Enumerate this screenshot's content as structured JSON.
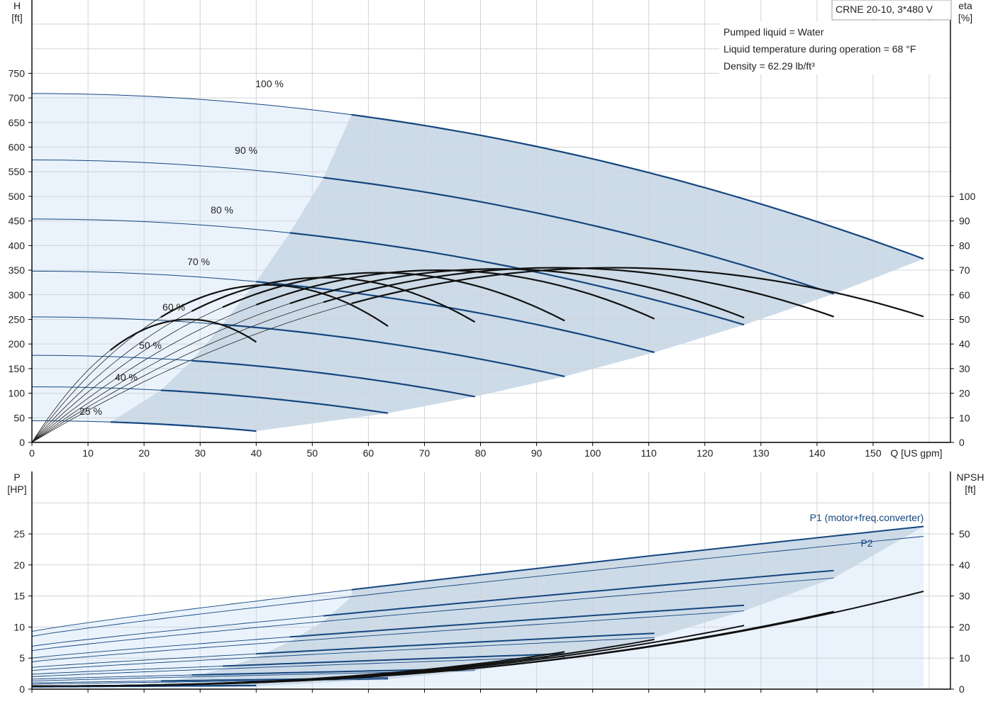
{
  "chart_data": [
    {
      "type": "line",
      "info": {
        "model": "CRNE 20-10, 3*480 V",
        "lines": [
          "Pumped liquid = Water",
          "Liquid temperature during operation = 68 °F",
          "Density = 62.29 lb/ft³"
        ]
      },
      "x_axis": {
        "label": "Q [US gpm]",
        "range": [
          0,
          160
        ],
        "ticks": [
          0,
          10,
          20,
          30,
          40,
          50,
          60,
          70,
          80,
          90,
          100,
          110,
          120,
          130,
          140,
          150
        ]
      },
      "y_axis_left": {
        "label_top": "H",
        "label_unit": "[ft]",
        "range": [
          0,
          850
        ],
        "ticks": [
          0,
          50,
          100,
          150,
          200,
          250,
          300,
          350,
          400,
          450,
          500,
          550,
          600,
          650,
          700,
          750
        ]
      },
      "y_axis_right": {
        "label_top": "eta",
        "label_unit": "[%]",
        "range": [
          0,
          100
        ],
        "ticks": [
          0,
          10,
          20,
          30,
          40,
          50,
          60,
          70,
          80,
          90,
          100
        ]
      },
      "series_head": [
        {
          "name": "100 %",
          "H0": 709,
          "Qmin": 57,
          "Qmax": 159,
          "Hmax": 373
        },
        {
          "name": "90 %",
          "H0": 574,
          "Qmin": 52,
          "Qmax": 143,
          "Hmax": 302
        },
        {
          "name": "80 %",
          "H0": 454,
          "Qmin": 46,
          "Qmax": 127,
          "Hmax": 239
        },
        {
          "name": "70 %",
          "H0": 348,
          "Qmin": 40,
          "Qmax": 111,
          "Hmax": 183
        },
        {
          "name": "60 %",
          "H0": 255,
          "Qmin": 34,
          "Qmax": 95,
          "Hmax": 134
        },
        {
          "name": "50 %",
          "H0": 177,
          "Qmin": 28.5,
          "Qmax": 79,
          "Hmax": 93
        },
        {
          "name": "40 %",
          "H0": 113,
          "Qmin": 23,
          "Qmax": 63.5,
          "Hmax": 59.5
        },
        {
          "name": "25 %",
          "H0": 44,
          "Qmin": 14,
          "Qmax": 40,
          "Hmax": 23
        }
      ],
      "series_efficiency": [
        {
          "Qpeak": 104,
          "peak": 71,
          "Qstart": 57,
          "Qend": 159,
          "end": 57
        },
        {
          "Qpeak": 93.5,
          "peak": 71,
          "Qstart": 52,
          "Qend": 143,
          "end": 57
        },
        {
          "Qpeak": 83,
          "peak": 70.5,
          "Qstart": 46,
          "Qend": 127,
          "end": 56
        },
        {
          "Qpeak": 72.5,
          "peak": 70,
          "Qstart": 40,
          "Qend": 111,
          "end": 56
        },
        {
          "Qpeak": 62,
          "peak": 69,
          "Qstart": 34,
          "Qend": 95,
          "end": 56
        },
        {
          "Qpeak": 52,
          "peak": 67,
          "Qstart": 28.5,
          "Qend": 79,
          "end": 54
        },
        {
          "Qpeak": 42,
          "peak": 64,
          "Qstart": 23,
          "Qend": 63.5,
          "end": 52
        },
        {
          "Qpeak": 28,
          "peak": 50,
          "Qstart": 14,
          "Qend": 40,
          "end": 41
        }
      ]
    },
    {
      "type": "line",
      "x_axis": {
        "range": [
          0,
          160
        ],
        "ticks": [
          0,
          10,
          20,
          30,
          40,
          50,
          60,
          70,
          80,
          90,
          100,
          110,
          120,
          130,
          140,
          150
        ]
      },
      "y_axis_left": {
        "label_top": "P",
        "label_unit": "[HP]",
        "range": [
          0,
          30
        ],
        "ticks": [
          0,
          5,
          10,
          15,
          20,
          25
        ]
      },
      "y_axis_right": {
        "label_top": "NPSH",
        "label_unit": "[ft]",
        "range": [
          0,
          60
        ],
        "ticks": [
          0,
          10,
          20,
          30,
          40,
          50
        ]
      },
      "legend": {
        "p1": "P1 (motor+freq.converter)",
        "p2": "P2"
      },
      "series_power": [
        {
          "P1_0": 9.3,
          "P1_max": 26.2,
          "P2_0": 8.5,
          "P2_max": 24.6,
          "Qmin": 57,
          "Qmax": 159
        },
        {
          "P1_0": 6.9,
          "P1_max": 19.1,
          "P2_0": 6.2,
          "P2_max": 17.9,
          "Qmin": 52,
          "Qmax": 143
        },
        {
          "P1_0": 5.0,
          "P1_max": 13.5,
          "P2_0": 4.4,
          "P2_max": 12.6,
          "Qmin": 46,
          "Qmax": 127
        },
        {
          "P1_0": 3.5,
          "P1_max": 9.0,
          "P2_0": 3.0,
          "P2_max": 8.3,
          "Qmin": 40,
          "Qmax": 111
        },
        {
          "P1_0": 2.4,
          "P1_max": 5.7,
          "P2_0": 2.0,
          "P2_max": 5.2,
          "Qmin": 34,
          "Qmax": 95
        },
        {
          "P1_0": 1.6,
          "P1_max": 3.3,
          "P2_0": 1.3,
          "P2_max": 3.0,
          "Qmin": 28.5,
          "Qmax": 79
        },
        {
          "P1_0": 1.0,
          "P1_max": 1.8,
          "P2_0": 0.8,
          "P2_max": 1.6,
          "Qmin": 23,
          "Qmax": 63.5
        },
        {
          "P1_0": 0.4,
          "P1_max": 0.6,
          "P2_0": 0.3,
          "P2_max": 0.5,
          "Qmin": 14,
          "Qmax": 40
        }
      ],
      "series_npsh": [
        {
          "Qstart": 0,
          "N0": 1,
          "Qend": 159,
          "Nend": 31.5
        },
        {
          "Qstart": 0,
          "N0": 1,
          "Qend": 143,
          "Nend": 25
        },
        {
          "Qstart": 0,
          "N0": 1,
          "Qend": 127,
          "Nend": 20.5
        },
        {
          "Qstart": 0,
          "N0": 1,
          "Qend": 111,
          "Nend": 16
        },
        {
          "Qstart": 0,
          "N0": 1,
          "Qend": 95,
          "Nend": 12
        },
        {
          "Qstart": 0,
          "N0": 1,
          "Qend": 79,
          "Nend": 8
        }
      ]
    }
  ]
}
